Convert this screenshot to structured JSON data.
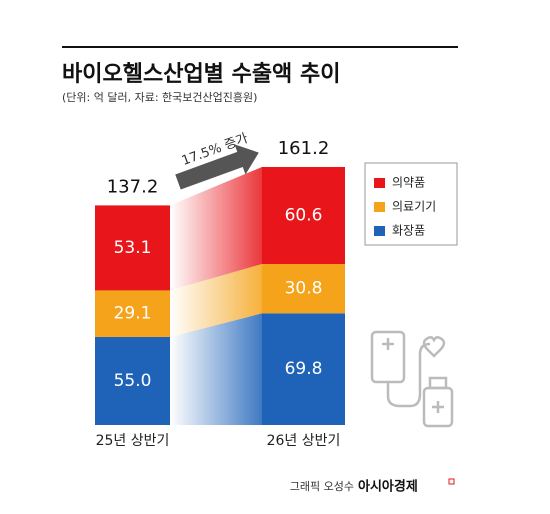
{
  "chart_data": {
    "type": "stacked-bar",
    "title": "바이오헬스산업별 수출액 추이",
    "subtitle": "(단위: 억 달러, 자료: 한국보건산업진흥원)",
    "categories": [
      "25년 상반기",
      "26년 상반기"
    ],
    "series": [
      {
        "name": "화장품",
        "color": "#1f63b8",
        "values": [
          55.0,
          69.8
        ],
        "value_labels": [
          "55.0",
          "69.8"
        ]
      },
      {
        "name": "의료기기",
        "color": "#f5a31a",
        "values": [
          29.1,
          30.8
        ]
      },
      {
        "name": "의약품",
        "color": "#e8151b",
        "values": [
          53.1,
          60.6
        ]
      }
    ],
    "totals": [
      137.2,
      161.2
    ],
    "annotation": "17.5% 증가",
    "credit": "그래픽 오성수",
    "brand": "아시아경제"
  }
}
